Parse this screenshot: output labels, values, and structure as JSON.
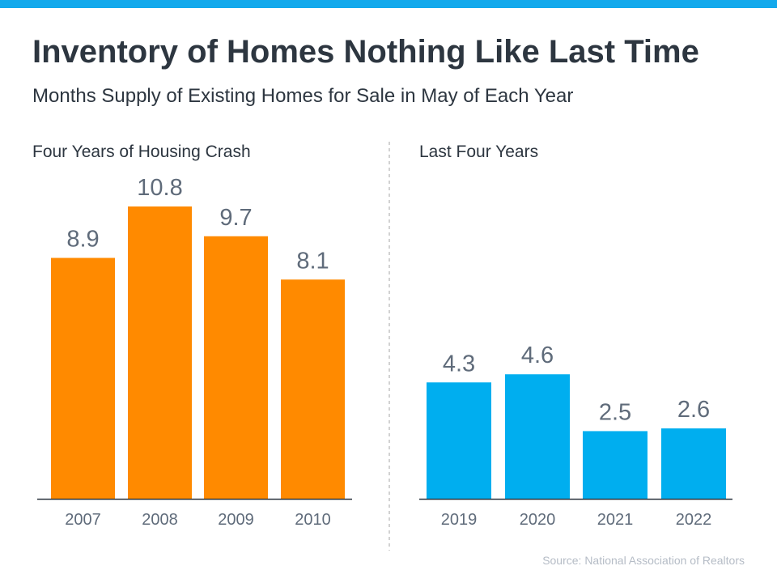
{
  "header": {
    "title": "Inventory of Homes Nothing Like Last Time",
    "subtitle": "Months Supply of Existing Homes for Sale in May of Each Year"
  },
  "colors": {
    "top_bar": "#13a9ec",
    "crash": "#ff8a00",
    "recent": "#00aeef",
    "text": "#2d3640",
    "labels": "#5f6b7a"
  },
  "chart_data": [
    {
      "type": "bar",
      "title": "Four Years of Housing Crash",
      "categories": [
        "2007",
        "2008",
        "2009",
        "2010"
      ],
      "values": [
        8.9,
        10.8,
        9.7,
        8.1
      ],
      "value_labels": [
        "8.9",
        "10.8",
        "9.7",
        "8.1"
      ],
      "color": "#ff8a00",
      "ylim": [
        0,
        10.8
      ],
      "grid": false
    },
    {
      "type": "bar",
      "title": "Last Four Years",
      "categories": [
        "2019",
        "2020",
        "2021",
        "2022"
      ],
      "values": [
        4.3,
        4.6,
        2.5,
        2.6
      ],
      "value_labels": [
        "4.3",
        "4.6",
        "2.5",
        "2.6"
      ],
      "color": "#00aeef",
      "ylim": [
        0,
        10.8
      ],
      "grid": false
    }
  ],
  "footer": {
    "source": "Source: National Association of Realtors"
  }
}
